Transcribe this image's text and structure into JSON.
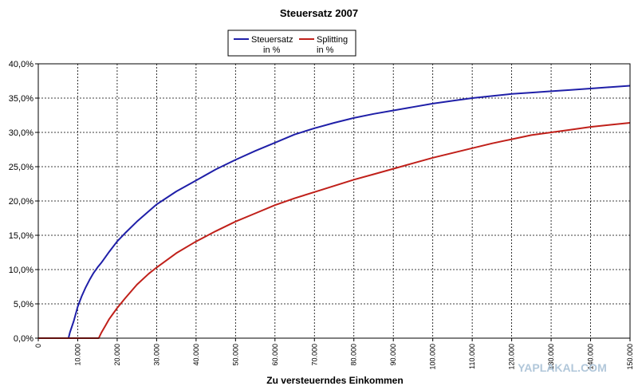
{
  "chart_data": {
    "type": "line",
    "title": "Steuersatz 2007",
    "xlabel": "Zu versteuerndes Einkommen",
    "ylabel": "",
    "xlim": [
      0,
      150000
    ],
    "ylim": [
      0,
      40
    ],
    "x_ticks": [
      0,
      10000,
      20000,
      30000,
      40000,
      50000,
      60000,
      70000,
      80000,
      90000,
      100000,
      110000,
      120000,
      130000,
      140000,
      150000
    ],
    "x_tick_labels": [
      "0",
      "10.000",
      "20.000",
      "30.000",
      "40.000",
      "50.000",
      "60.000",
      "70.000",
      "80.000",
      "90.000",
      "100.000",
      "110.000",
      "120.000",
      "130.000",
      "140.000",
      "150.000"
    ],
    "y_ticks": [
      0,
      5,
      10,
      15,
      20,
      25,
      30,
      35,
      40
    ],
    "y_tick_labels": [
      "0,0%",
      "5,0%",
      "10,0%",
      "15,0%",
      "20,0%",
      "25,0%",
      "30,0%",
      "35,0%",
      "40,0%"
    ],
    "grid": true,
    "legend_placement": "top-center",
    "series": [
      {
        "name": "Steuersatz in %",
        "legend_lines": [
          "Steuersatz",
          "in %"
        ],
        "color": "#1f1fa8",
        "x": [
          0,
          7664,
          8000,
          9000,
          10000,
          11000,
          12000,
          13000,
          14000,
          15000,
          16000,
          18000,
          20000,
          22000,
          25000,
          30000,
          35000,
          40000,
          45000,
          50000,
          55000,
          60000,
          65000,
          70000,
          75000,
          80000,
          85000,
          90000,
          95000,
          100000,
          105000,
          110000,
          115000,
          120000,
          125000,
          130000,
          135000,
          140000,
          145000,
          150000
        ],
        "y": [
          0,
          0,
          0.8,
          2.5,
          4.6,
          6.1,
          7.4,
          8.5,
          9.5,
          10.3,
          11.0,
          12.6,
          14.1,
          15.3,
          17.0,
          19.5,
          21.4,
          23.0,
          24.6,
          26.0,
          27.3,
          28.5,
          29.7,
          30.6,
          31.4,
          32.1,
          32.7,
          33.2,
          33.7,
          34.2,
          34.6,
          35.0,
          35.3,
          35.6,
          35.8,
          36.0,
          36.2,
          36.4,
          36.6,
          36.8
        ]
      },
      {
        "name": "Splitting in %",
        "legend_lines": [
          "Splitting",
          "in %"
        ],
        "color": "#c0201a",
        "x": [
          0,
          15328,
          16000,
          17000,
          18000,
          19000,
          20000,
          22000,
          25000,
          28000,
          30000,
          35000,
          40000,
          45000,
          50000,
          55000,
          60000,
          65000,
          70000,
          75000,
          80000,
          85000,
          90000,
          95000,
          100000,
          105000,
          110000,
          115000,
          120000,
          125000,
          130000,
          135000,
          140000,
          145000,
          150000
        ],
        "y": [
          0,
          0,
          0.8,
          1.8,
          2.8,
          3.6,
          4.4,
          5.8,
          7.8,
          9.4,
          10.3,
          12.4,
          14.1,
          15.6,
          17.0,
          18.2,
          19.4,
          20.4,
          21.3,
          22.2,
          23.1,
          23.9,
          24.7,
          25.5,
          26.3,
          27.0,
          27.7,
          28.4,
          29.0,
          29.6,
          30.0,
          30.4,
          30.8,
          31.1,
          31.4
        ]
      }
    ]
  },
  "watermark": "YAPLAKAL.COM"
}
